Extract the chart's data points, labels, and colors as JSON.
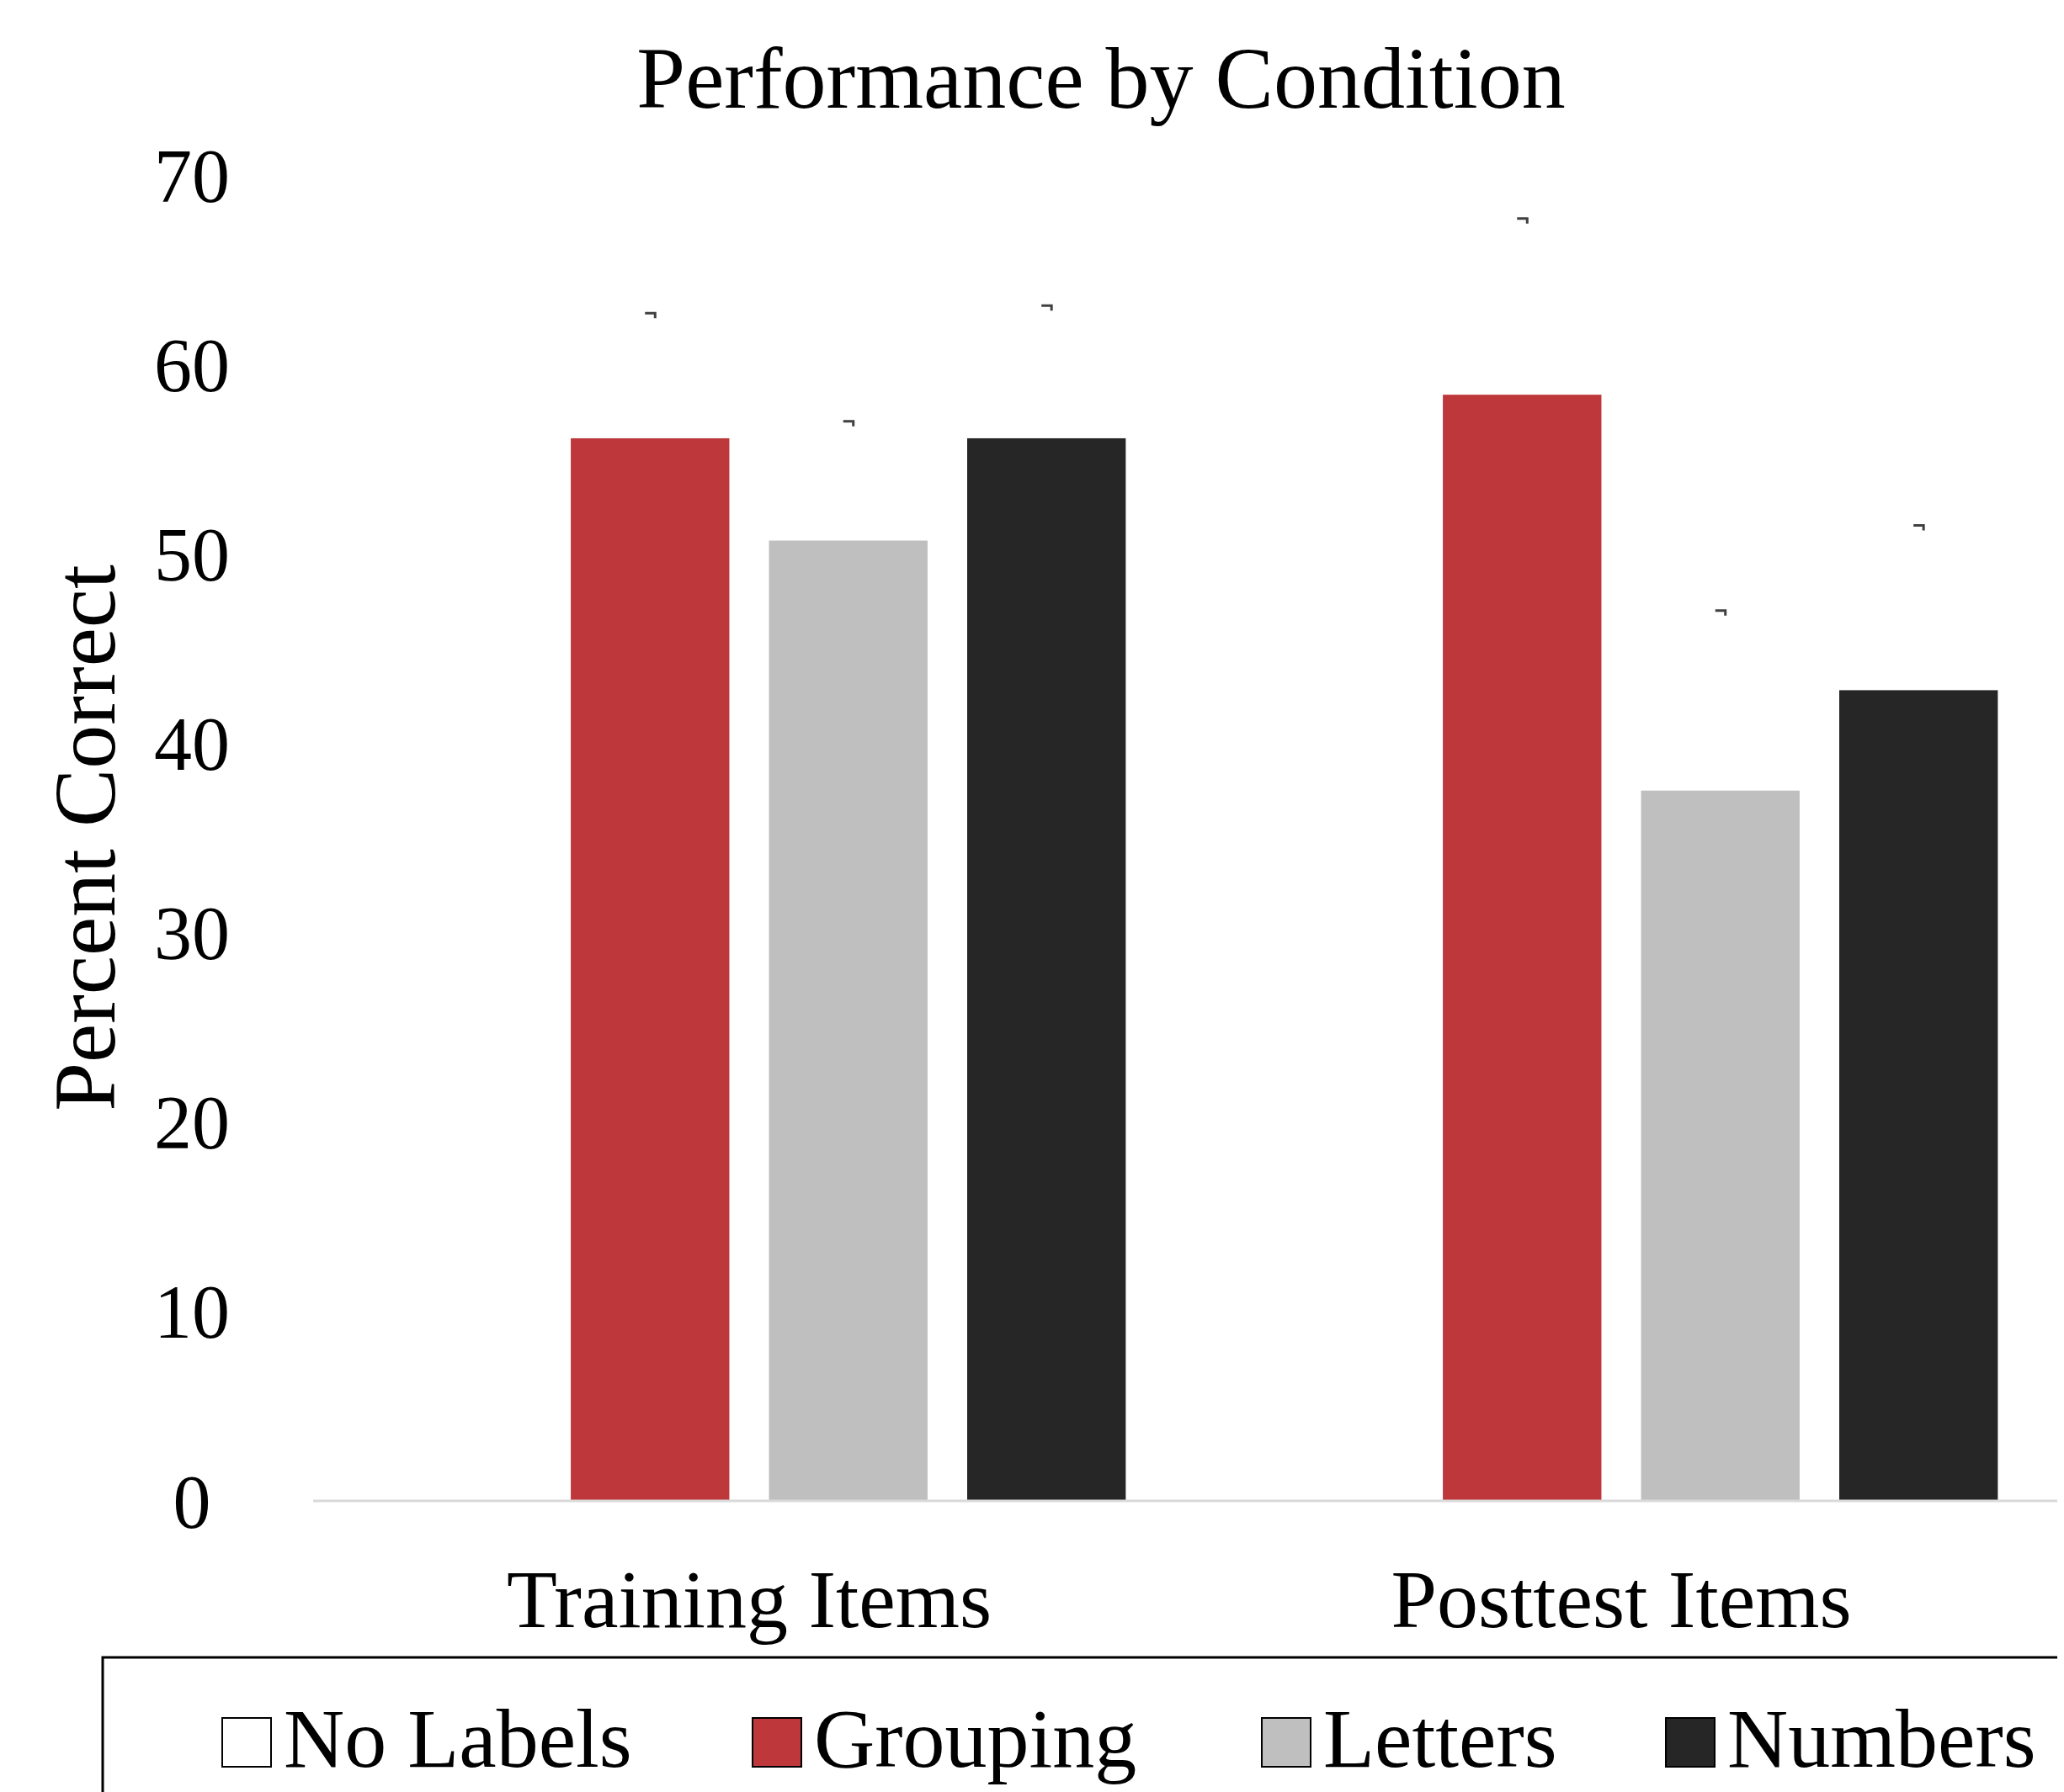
{
  "chart_data": {
    "type": "bar",
    "title": "Performance by Condition",
    "ylabel": "Percent Correct",
    "categories": [
      "Training Items",
      "Posttest Items"
    ],
    "series": [
      {
        "name": "No Labels",
        "color": "#ffffff",
        "values": [
          null,
          null
        ]
      },
      {
        "name": "Grouping",
        "color": "#bd373b",
        "values": [
          56.1,
          58.4
        ],
        "errors": [
          6.6,
          9.3
        ]
      },
      {
        "name": "Letters",
        "color": "#bfbfbf",
        "values": [
          50.7,
          37.5
        ],
        "errors": [
          6.3,
          9.5
        ]
      },
      {
        "name": "Numbers",
        "color": "#262626",
        "values": [
          56.1,
          42.8
        ],
        "errors": [
          7.0,
          8.7
        ]
      }
    ],
    "ylim": [
      0,
      70
    ],
    "yticks": [
      0,
      10,
      20,
      30,
      40,
      50,
      60,
      70
    ],
    "grid": false,
    "legend": "bottom"
  }
}
